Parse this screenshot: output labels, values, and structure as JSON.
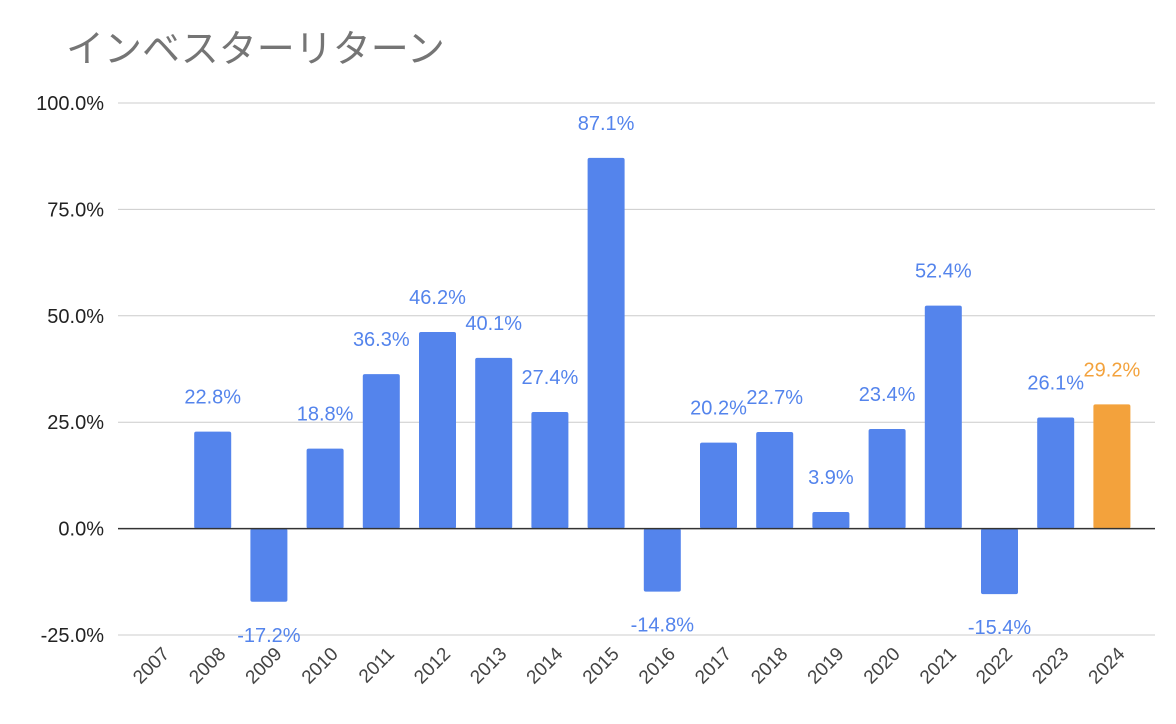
{
  "chart_data": {
    "type": "bar",
    "title": "インベスターリターン",
    "xlabel": "",
    "ylabel": "",
    "categories": [
      "2007",
      "2008",
      "2009",
      "2010",
      "2011",
      "2012",
      "2013",
      "2014",
      "2015",
      "2016",
      "2017",
      "2018",
      "2019",
      "2020",
      "2021",
      "2022",
      "2023",
      "2024"
    ],
    "values": [
      null,
      22.8,
      -17.2,
      18.8,
      36.3,
      46.2,
      40.1,
      27.4,
      87.1,
      -14.8,
      20.2,
      22.7,
      3.9,
      23.4,
      52.4,
      -15.4,
      26.1,
      29.2
    ],
    "data_labels": [
      "",
      "22.8%",
      "-17.2%",
      "18.8%",
      "36.3%",
      "46.2%",
      "40.1%",
      "27.4%",
      "87.1%",
      "-14.8%",
      "20.2%",
      "22.7%",
      "3.9%",
      "23.4%",
      "52.4%",
      "-15.4%",
      "26.1%",
      "29.2%"
    ],
    "ylim": [
      -25,
      100
    ],
    "yticks": [
      100,
      75,
      50,
      25,
      0,
      -25
    ],
    "ytick_labels": [
      "100.0%",
      "75.0%",
      "50.0%",
      "25.0%",
      "0.0%",
      "-25.0%"
    ],
    "grid": true,
    "legend": "none",
    "colors": {
      "bar": "#5484ec",
      "highlight": "#f3a23c",
      "highlight_category": "2024",
      "grid": "#cccccc",
      "zero_line": "#333333"
    }
  }
}
